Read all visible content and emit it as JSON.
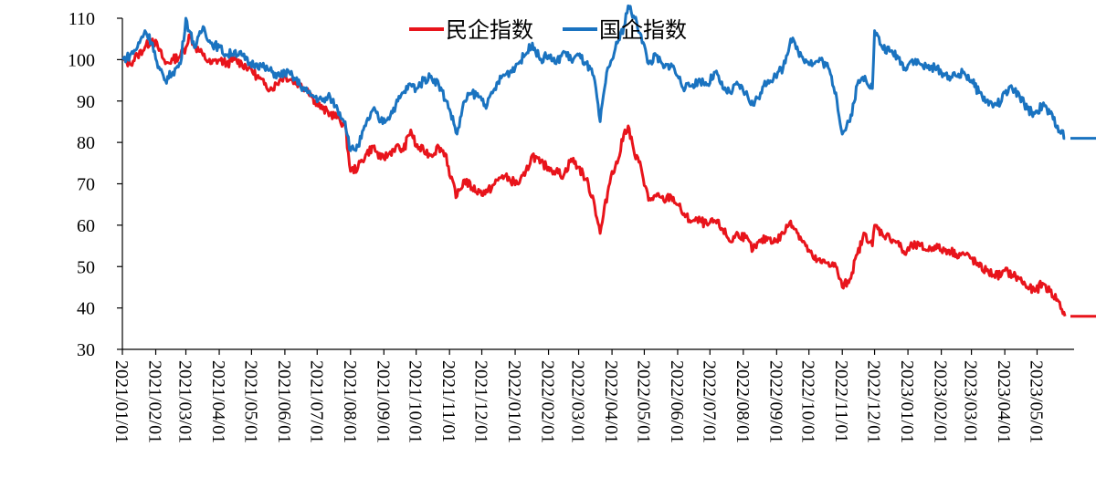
{
  "chart_data": {
    "type": "line",
    "title": "",
    "xlabel": "",
    "ylabel": "",
    "ylim": [
      30,
      110
    ],
    "yticks": [
      30,
      40,
      50,
      60,
      70,
      80,
      90,
      100,
      110
    ],
    "x_tick_labels": [
      "2021/01/01",
      "2021/02/01",
      "2021/03/01",
      "2021/04/01",
      "2021/05/01",
      "2021/06/01",
      "2021/07/01",
      "2021/08/01",
      "2021/09/01",
      "2021/10/01",
      "2021/11/01",
      "2021/12/01",
      "2022/01/01",
      "2022/02/01",
      "2022/03/01",
      "2022/04/01",
      "2022/05/01",
      "2022/06/01",
      "2022/07/01",
      "2022/08/01",
      "2022/09/01",
      "2022/10/01",
      "2022/11/01",
      "2022/12/01",
      "2023/01/01",
      "2023/02/01",
      "2023/03/01",
      "2023/04/01",
      "2023/05/01"
    ],
    "xlim": [
      "2021/01/01",
      "2023/06/01"
    ],
    "legend_position": "top-center",
    "grid": false,
    "series": [
      {
        "name": "民企指数",
        "color": "#e8141b",
        "points": [
          [
            "2021/01/01",
            100
          ],
          [
            "2021/01/08",
            99
          ],
          [
            "2021/01/15",
            101
          ],
          [
            "2021/01/22",
            103
          ],
          [
            "2021/01/29",
            105
          ],
          [
            "2021/02/03",
            103
          ],
          [
            "2021/02/10",
            99
          ],
          [
            "2021/02/17",
            100
          ],
          [
            "2021/02/24",
            101
          ],
          [
            "2021/03/01",
            103
          ],
          [
            "2021/03/04",
            106
          ],
          [
            "2021/03/10",
            103
          ],
          [
            "2021/03/17",
            101
          ],
          [
            "2021/03/24",
            99
          ],
          [
            "2021/04/01",
            100
          ],
          [
            "2021/04/08",
            99
          ],
          [
            "2021/04/15",
            100
          ],
          [
            "2021/04/22",
            99
          ],
          [
            "2021/04/29",
            98
          ],
          [
            "2021/05/06",
            96
          ],
          [
            "2021/05/13",
            94
          ],
          [
            "2021/05/20",
            93
          ],
          [
            "2021/05/27",
            95
          ],
          [
            "2021/06/01",
            96
          ],
          [
            "2021/06/08",
            95
          ],
          [
            "2021/06/15",
            94
          ],
          [
            "2021/06/22",
            93
          ],
          [
            "2021/06/29",
            90
          ],
          [
            "2021/07/06",
            88
          ],
          [
            "2021/07/13",
            87
          ],
          [
            "2021/07/20",
            86
          ],
          [
            "2021/07/27",
            84
          ],
          [
            "2021/08/01",
            73
          ],
          [
            "2021/08/08",
            74
          ],
          [
            "2021/08/15",
            77
          ],
          [
            "2021/08/22",
            79
          ],
          [
            "2021/08/29",
            76
          ],
          [
            "2021/09/05",
            77
          ],
          [
            "2021/09/12",
            79
          ],
          [
            "2021/09/19",
            78
          ],
          [
            "2021/09/26",
            83
          ],
          [
            "2021/10/01",
            79
          ],
          [
            "2021/10/08",
            78
          ],
          [
            "2021/10/15",
            77
          ],
          [
            "2021/10/22",
            79
          ],
          [
            "2021/10/29",
            77
          ],
          [
            "2021/11/01",
            72
          ],
          [
            "2021/11/08",
            67
          ],
          [
            "2021/11/15",
            71
          ],
          [
            "2021/11/22",
            69
          ],
          [
            "2021/11/29",
            68
          ],
          [
            "2021/12/06",
            68
          ],
          [
            "2021/12/13",
            70
          ],
          [
            "2021/12/20",
            72
          ],
          [
            "2021/12/27",
            71
          ],
          [
            "2022/01/03",
            70
          ],
          [
            "2022/01/10",
            72
          ],
          [
            "2022/01/17",
            77
          ],
          [
            "2022/01/24",
            75
          ],
          [
            "2022/02/01",
            74
          ],
          [
            "2022/02/08",
            73
          ],
          [
            "2022/02/15",
            72
          ],
          [
            "2022/02/22",
            76
          ],
          [
            "2022/03/01",
            74
          ],
          [
            "2022/03/08",
            71
          ],
          [
            "2022/03/15",
            66
          ],
          [
            "2022/03/21",
            58
          ],
          [
            "2022/03/28",
            68
          ],
          [
            "2022/04/01",
            73
          ],
          [
            "2022/04/06",
            75
          ],
          [
            "2022/04/12",
            82
          ],
          [
            "2022/04/16",
            84
          ],
          [
            "2022/04/22",
            77
          ],
          [
            "2022/04/28",
            74
          ],
          [
            "2022/05/05",
            66
          ],
          [
            "2022/05/12",
            67
          ],
          [
            "2022/05/19",
            66
          ],
          [
            "2022/05/26",
            67
          ],
          [
            "2022/06/01",
            65
          ],
          [
            "2022/06/08",
            62
          ],
          [
            "2022/06/15",
            61
          ],
          [
            "2022/06/22",
            61
          ],
          [
            "2022/06/29",
            60
          ],
          [
            "2022/07/06",
            61
          ],
          [
            "2022/07/13",
            59
          ],
          [
            "2022/07/20",
            56
          ],
          [
            "2022/07/27",
            58
          ],
          [
            "2022/08/03",
            57
          ],
          [
            "2022/08/10",
            54
          ],
          [
            "2022/08/17",
            56
          ],
          [
            "2022/08/24",
            57
          ],
          [
            "2022/08/31",
            56
          ],
          [
            "2022/09/07",
            58
          ],
          [
            "2022/09/14",
            61
          ],
          [
            "2022/09/21",
            58
          ],
          [
            "2022/09/28",
            55
          ],
          [
            "2022/10/05",
            52
          ],
          [
            "2022/10/12",
            51
          ],
          [
            "2022/10/19",
            51
          ],
          [
            "2022/10/26",
            50
          ],
          [
            "2022/11/01",
            45
          ],
          [
            "2022/11/08",
            47
          ],
          [
            "2022/11/15",
            53
          ],
          [
            "2022/11/22",
            58
          ],
          [
            "2022/11/29",
            55
          ],
          [
            "2022/12/01",
            60
          ],
          [
            "2022/12/08",
            58
          ],
          [
            "2022/12/15",
            57
          ],
          [
            "2022/12/22",
            56
          ],
          [
            "2022/12/29",
            53
          ],
          [
            "2023/01/05",
            55
          ],
          [
            "2023/01/12",
            55
          ],
          [
            "2023/01/19",
            54
          ],
          [
            "2023/01/26",
            55
          ],
          [
            "2023/02/01",
            54
          ],
          [
            "2023/02/08",
            54
          ],
          [
            "2023/02/15",
            53
          ],
          [
            "2023/02/22",
            53
          ],
          [
            "2023/03/01",
            52
          ],
          [
            "2023/03/08",
            50
          ],
          [
            "2023/03/15",
            49
          ],
          [
            "2023/03/22",
            48
          ],
          [
            "2023/03/29",
            48
          ],
          [
            "2023/04/01",
            49
          ],
          [
            "2023/04/08",
            48
          ],
          [
            "2023/04/15",
            47
          ],
          [
            "2023/04/22",
            45
          ],
          [
            "2023/04/29",
            44
          ],
          [
            "2023/05/06",
            46
          ],
          [
            "2023/05/13",
            44
          ],
          [
            "2023/05/20",
            42
          ],
          [
            "2023/05/27",
            38
          ]
        ],
        "flat_tail_value": 38
      },
      {
        "name": "国企指数",
        "color": "#1a73c0",
        "points": [
          [
            "2021/01/01",
            100
          ],
          [
            "2021/01/08",
            101
          ],
          [
            "2021/01/15",
            103
          ],
          [
            "2021/01/22",
            107
          ],
          [
            "2021/01/29",
            104
          ],
          [
            "2021/02/03",
            98
          ],
          [
            "2021/02/10",
            95
          ],
          [
            "2021/02/17",
            97
          ],
          [
            "2021/02/24",
            99
          ],
          [
            "2021/03/01",
            110
          ],
          [
            "2021/03/04",
            107
          ],
          [
            "2021/03/10",
            103
          ],
          [
            "2021/03/17",
            108
          ],
          [
            "2021/03/24",
            104
          ],
          [
            "2021/04/01",
            103
          ],
          [
            "2021/04/08",
            101
          ],
          [
            "2021/04/15",
            102
          ],
          [
            "2021/04/22",
            101
          ],
          [
            "2021/04/29",
            99
          ],
          [
            "2021/05/06",
            99
          ],
          [
            "2021/05/13",
            98
          ],
          [
            "2021/05/20",
            97
          ],
          [
            "2021/05/27",
            96
          ],
          [
            "2021/06/01",
            97
          ],
          [
            "2021/06/08",
            96
          ],
          [
            "2021/06/15",
            94
          ],
          [
            "2021/06/22",
            92
          ],
          [
            "2021/06/29",
            91
          ],
          [
            "2021/07/06",
            90
          ],
          [
            "2021/07/13",
            91
          ],
          [
            "2021/07/20",
            88
          ],
          [
            "2021/07/27",
            85
          ],
          [
            "2021/08/01",
            78
          ],
          [
            "2021/08/08",
            79
          ],
          [
            "2021/08/15",
            84
          ],
          [
            "2021/08/22",
            88
          ],
          [
            "2021/08/29",
            85
          ],
          [
            "2021/09/05",
            86
          ],
          [
            "2021/09/12",
            89
          ],
          [
            "2021/09/19",
            92
          ],
          [
            "2021/09/26",
            94
          ],
          [
            "2021/10/01",
            93
          ],
          [
            "2021/10/08",
            95
          ],
          [
            "2021/10/15",
            96
          ],
          [
            "2021/10/22",
            94
          ],
          [
            "2021/10/29",
            90
          ],
          [
            "2021/11/01",
            88
          ],
          [
            "2021/11/08",
            82
          ],
          [
            "2021/11/15",
            90
          ],
          [
            "2021/11/22",
            92
          ],
          [
            "2021/11/29",
            91
          ],
          [
            "2021/12/06",
            89
          ],
          [
            "2021/12/13",
            93
          ],
          [
            "2021/12/20",
            96
          ],
          [
            "2021/12/27",
            97
          ],
          [
            "2022/01/03",
            99
          ],
          [
            "2022/01/10",
            101
          ],
          [
            "2022/01/17",
            104
          ],
          [
            "2022/01/24",
            100
          ],
          [
            "2022/02/01",
            101
          ],
          [
            "2022/02/08",
            99
          ],
          [
            "2022/02/15",
            102
          ],
          [
            "2022/02/22",
            100
          ],
          [
            "2022/03/01",
            101
          ],
          [
            "2022/03/08",
            99
          ],
          [
            "2022/03/15",
            96
          ],
          [
            "2022/03/21",
            85
          ],
          [
            "2022/03/28",
            98
          ],
          [
            "2022/04/01",
            100
          ],
          [
            "2022/04/06",
            104
          ],
          [
            "2022/04/12",
            108
          ],
          [
            "2022/04/16",
            113
          ],
          [
            "2022/04/22",
            110
          ],
          [
            "2022/04/28",
            106
          ],
          [
            "2022/05/05",
            99
          ],
          [
            "2022/05/12",
            101
          ],
          [
            "2022/05/19",
            98
          ],
          [
            "2022/05/26",
            99
          ],
          [
            "2022/06/01",
            96
          ],
          [
            "2022/06/08",
            93
          ],
          [
            "2022/06/15",
            94
          ],
          [
            "2022/06/22",
            95
          ],
          [
            "2022/06/29",
            94
          ],
          [
            "2022/07/06",
            97
          ],
          [
            "2022/07/13",
            93
          ],
          [
            "2022/07/20",
            92
          ],
          [
            "2022/07/27",
            94
          ],
          [
            "2022/08/03",
            92
          ],
          [
            "2022/08/10",
            89
          ],
          [
            "2022/08/17",
            92
          ],
          [
            "2022/08/24",
            95
          ],
          [
            "2022/08/31",
            96
          ],
          [
            "2022/09/07",
            98
          ],
          [
            "2022/09/14",
            105
          ],
          [
            "2022/09/21",
            102
          ],
          [
            "2022/09/28",
            100
          ],
          [
            "2022/10/05",
            99
          ],
          [
            "2022/10/12",
            100
          ],
          [
            "2022/10/19",
            98
          ],
          [
            "2022/10/26",
            92
          ],
          [
            "2022/11/01",
            82
          ],
          [
            "2022/11/08",
            85
          ],
          [
            "2022/11/15",
            94
          ],
          [
            "2022/11/22",
            96
          ],
          [
            "2022/11/29",
            93
          ],
          [
            "2022/12/01",
            107
          ],
          [
            "2022/12/08",
            103
          ],
          [
            "2022/12/15",
            102
          ],
          [
            "2022/12/22",
            101
          ],
          [
            "2022/12/29",
            98
          ],
          [
            "2023/01/05",
            100
          ],
          [
            "2023/01/12",
            99
          ],
          [
            "2023/01/19",
            98
          ],
          [
            "2023/01/26",
            98
          ],
          [
            "2023/02/01",
            97
          ],
          [
            "2023/02/08",
            96
          ],
          [
            "2023/02/15",
            96
          ],
          [
            "2023/02/22",
            97
          ],
          [
            "2023/03/01",
            95
          ],
          [
            "2023/03/08",
            92
          ],
          [
            "2023/03/15",
            90
          ],
          [
            "2023/03/22",
            89
          ],
          [
            "2023/03/29",
            90
          ],
          [
            "2023/04/01",
            92
          ],
          [
            "2023/04/08",
            93
          ],
          [
            "2023/04/15",
            91
          ],
          [
            "2023/04/22",
            88
          ],
          [
            "2023/04/29",
            87
          ],
          [
            "2023/05/06",
            89
          ],
          [
            "2023/05/13",
            87
          ],
          [
            "2023/05/20",
            84
          ],
          [
            "2023/05/27",
            81
          ]
        ],
        "flat_tail_value": 81
      }
    ]
  }
}
